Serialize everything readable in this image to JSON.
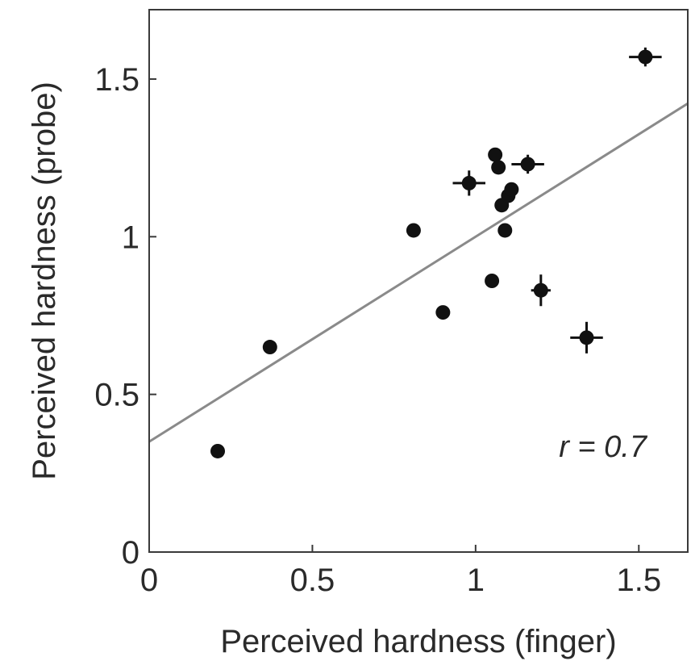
{
  "chart_data": {
    "type": "scatter",
    "xlabel": "Perceived hardness (finger)",
    "ylabel": "Perceived hardness (probe)",
    "xlim": [
      0,
      1.65
    ],
    "ylim": [
      0,
      1.72
    ],
    "xticks": [
      0,
      0.5,
      1,
      1.5
    ],
    "xtick_labels": [
      "0",
      "0.5",
      "1",
      "1.5"
    ],
    "yticks": [
      0,
      0.5,
      1,
      1.5
    ],
    "ytick_labels": [
      "0",
      "0.5",
      "1",
      "1.5"
    ],
    "grid": false,
    "annotation": "r = 0.7",
    "fit_line": {
      "slope": 0.65,
      "intercept": 0.35
    },
    "points": [
      {
        "x": 0.21,
        "y": 0.32,
        "xerr": 0.01,
        "yerr": 0.01
      },
      {
        "x": 0.37,
        "y": 0.65,
        "xerr": 0.01,
        "yerr": 0.01
      },
      {
        "x": 0.81,
        "y": 1.02,
        "xerr": 0.02,
        "yerr": 0.01
      },
      {
        "x": 0.9,
        "y": 0.76,
        "xerr": 0.01,
        "yerr": 0.01
      },
      {
        "x": 0.98,
        "y": 1.17,
        "xerr": 0.05,
        "yerr": 0.04
      },
      {
        "x": 1.05,
        "y": 0.86,
        "xerr": 0.01,
        "yerr": 0.01
      },
      {
        "x": 1.06,
        "y": 1.26,
        "xerr": 0.02,
        "yerr": 0.02
      },
      {
        "x": 1.07,
        "y": 1.22,
        "xerr": 0.01,
        "yerr": 0.02
      },
      {
        "x": 1.08,
        "y": 1.1,
        "xerr": 0.02,
        "yerr": 0.02
      },
      {
        "x": 1.1,
        "y": 1.13,
        "xerr": 0.01,
        "yerr": 0.01
      },
      {
        "x": 1.11,
        "y": 1.15,
        "xerr": 0.01,
        "yerr": 0.01
      },
      {
        "x": 1.09,
        "y": 1.02,
        "xerr": 0.01,
        "yerr": 0.01
      },
      {
        "x": 1.16,
        "y": 1.23,
        "xerr": 0.05,
        "yerr": 0.03
      },
      {
        "x": 1.2,
        "y": 0.83,
        "xerr": 0.03,
        "yerr": 0.05
      },
      {
        "x": 1.34,
        "y": 0.68,
        "xerr": 0.05,
        "yerr": 0.05
      },
      {
        "x": 1.52,
        "y": 1.57,
        "xerr": 0.05,
        "yerr": 0.03
      }
    ]
  }
}
